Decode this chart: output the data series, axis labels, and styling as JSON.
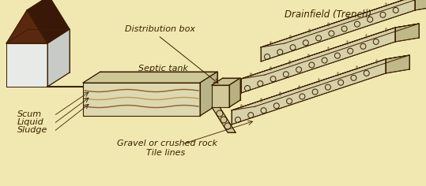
{
  "bg_color": "#f0e8b0",
  "line_color": "#3a2000",
  "labels": {
    "distribution_box": "Distribution box",
    "septic_tank": "Septic tank",
    "drainfield": "Drainfield (Trench)",
    "scum": "Scum",
    "liquid": "Liquid",
    "sludge": "Sludge",
    "gravel": "Gravel or crushed rock",
    "tile_lines": "Tile lines"
  },
  "house_roof_dark": "#5a2810",
  "house_roof_darker": "#3a1808",
  "house_wall_front": "#e8eae8",
  "house_wall_side": "#c8cac8",
  "house_wall_top": "#70c8c8",
  "tank_front": "#ddd8b0",
  "tank_top": "#ccc898",
  "tank_side": "#b8b488",
  "tank_stripe1": "#8a6030",
  "tank_stripe2": "#c09858",
  "tank_stripe3": "#a87840",
  "pipe_color": "#c8c090",
  "db_front": "#d0c898",
  "db_top": "#c8c090",
  "db_side": "#b8b080",
  "trench_top": "#d0c090",
  "trench_front": "#d8d0a8",
  "trench_side": "#c0b888",
  "gravel_color": "#c8b878"
}
